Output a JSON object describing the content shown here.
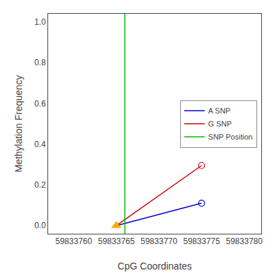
{
  "chart_data": {
    "type": "line",
    "title": "",
    "xlabel": "CpG Coordinates",
    "ylabel": "Methylation Frequency",
    "x": [
      59833765,
      59833775
    ],
    "series": [
      {
        "name": "A SNP",
        "color": "#0000cc",
        "values": [
          0.0,
          0.11
        ],
        "marker": "circle-open"
      },
      {
        "name": "G SNP",
        "color": "#cc0000",
        "values": [
          0.0,
          0.295
        ],
        "marker": "circle-open"
      }
    ],
    "vlines": [
      {
        "name": "SNP Position",
        "x": 59833766,
        "color": "#00bb00"
      }
    ],
    "points": [
      {
        "x": 59833765,
        "y": 0.0,
        "color": "#FFA500",
        "marker": "triangle-up"
      }
    ],
    "xlim": [
      59833757,
      59833782
    ],
    "ylim": [
      -0.04,
      1.04
    ],
    "xticks": [
      59833760,
      59833765,
      59833770,
      59833775,
      59833780
    ],
    "yticks": [
      {
        "value": 0.0,
        "label": "0.0"
      },
      0.2,
      0.4,
      0.6,
      0.8,
      {
        "value": 1.0,
        "label": "1.0"
      }
    ],
    "grid": false,
    "legend": "center right"
  }
}
